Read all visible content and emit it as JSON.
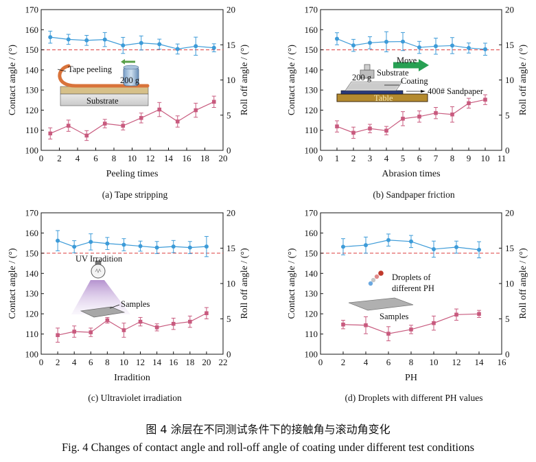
{
  "figure": {
    "caption_cn": "图 4 涂层在不同测试条件下的接触角与滚动角变化",
    "caption_en": "Fig. 4 Changes of contact angle and roll-off angle of coating under different test conditions"
  },
  "colors": {
    "contact": "#3d9bd8",
    "rolloff": "#c85a7e",
    "reference": "#e05050",
    "axis": "#111111"
  },
  "chart_data": [
    {
      "type": "line",
      "caption": "(a) Tape stripping",
      "xlabel": "Peeling times",
      "ylabel": "Contact angle / (°)",
      "y2label": "Roll off angle / (°)",
      "xlim": [
        0,
        20
      ],
      "xticks": [
        0,
        2,
        4,
        6,
        8,
        10,
        12,
        14,
        16,
        18,
        20
      ],
      "ylim": [
        100,
        170
      ],
      "yticks": [
        100,
        110,
        120,
        130,
        140,
        150,
        160,
        170
      ],
      "y2lim": [
        0,
        20
      ],
      "y2ticks": [
        0,
        5,
        10,
        15,
        20
      ],
      "reference_line": 150,
      "series": [
        {
          "axis": "left",
          "x": [
            1,
            3,
            5,
            7,
            9,
            11,
            13,
            15,
            17,
            19
          ],
          "values": [
            156.3,
            155.2,
            154.7,
            155.1,
            152.2,
            153.4,
            152.8,
            150.4,
            151.8,
            151.0
          ],
          "errors": [
            3,
            2.5,
            2.5,
            3.5,
            4,
            3.5,
            2.5,
            2.5,
            4.5,
            2
          ]
        },
        {
          "axis": "right",
          "x": [
            1,
            3,
            5,
            7,
            9,
            11,
            13,
            15,
            17,
            19
          ],
          "values": [
            2.4,
            3.5,
            2.1,
            3.8,
            3.5,
            4.6,
            5.8,
            4.1,
            5.7,
            6.9
          ],
          "errors": [
            0.8,
            0.8,
            0.7,
            0.6,
            0.6,
            0.7,
            1.0,
            0.8,
            1.0,
            0.8
          ]
        }
      ],
      "annotations": [
        "Tape peeling",
        "200 g",
        "Substrate"
      ]
    },
    {
      "type": "line",
      "caption": "(b) Sandpaper friction",
      "xlabel": "Abrasion times",
      "ylabel": "Contact angle / (°)",
      "y2label": "Roll off angle / (°)",
      "xlim": [
        0,
        11
      ],
      "xticks": [
        0,
        1,
        2,
        3,
        4,
        5,
        6,
        7,
        8,
        9,
        10,
        11
      ],
      "ylim": [
        100,
        170
      ],
      "yticks": [
        100,
        110,
        120,
        130,
        140,
        150,
        160,
        170
      ],
      "y2lim": [
        0,
        20
      ],
      "y2ticks": [
        0,
        5,
        10,
        15,
        20
      ],
      "reference_line": 150,
      "series": [
        {
          "axis": "left",
          "x": [
            1,
            2,
            3,
            4,
            5,
            6,
            7,
            8,
            9,
            10
          ],
          "values": [
            155.5,
            152.2,
            153.5,
            154.0,
            154.1,
            151.2,
            151.8,
            152.1,
            150.9,
            150.3
          ],
          "errors": [
            3,
            3,
            3,
            5,
            4.5,
            3,
            4,
            4,
            2.5,
            3
          ]
        },
        {
          "axis": "right",
          "x": [
            1,
            2,
            3,
            4,
            5,
            6,
            7,
            8,
            9,
            10
          ],
          "values": [
            3.4,
            2.5,
            3.1,
            2.8,
            4.5,
            4.8,
            5.3,
            5.1,
            6.7,
            7.2
          ],
          "errors": [
            0.8,
            0.8,
            0.6,
            0.6,
            1.0,
            0.8,
            0.8,
            1.1,
            0.7,
            0.7
          ]
        }
      ],
      "annotations": [
        "Move",
        "200 g",
        "Substrate",
        "Coating",
        "400# Sandpaper",
        "Table"
      ]
    },
    {
      "type": "line",
      "caption": "(c) Ultraviolet irradiation",
      "xlabel": "Irradition",
      "ylabel": "Contact angle / (°)",
      "y2label": "Roll off angle / (°)",
      "xlim": [
        0,
        22
      ],
      "xticks": [
        0,
        2,
        4,
        6,
        8,
        10,
        12,
        14,
        16,
        18,
        20,
        22
      ],
      "ylim": [
        100,
        170
      ],
      "yticks": [
        100,
        110,
        120,
        130,
        140,
        150,
        160,
        170
      ],
      "y2lim": [
        0,
        20
      ],
      "y2ticks": [
        0,
        5,
        10,
        15,
        20
      ],
      "reference_line": 150,
      "series": [
        {
          "axis": "left",
          "x": [
            2,
            4,
            6,
            8,
            10,
            12,
            14,
            16,
            18,
            20
          ],
          "values": [
            156.2,
            153.2,
            155.6,
            154.8,
            154.2,
            153.5,
            152.8,
            153.3,
            152.8,
            153.3
          ],
          "errors": [
            5,
            3,
            4,
            3,
            3,
            2.5,
            3,
            3,
            3,
            5
          ]
        },
        {
          "axis": "right",
          "x": [
            2,
            4,
            6,
            8,
            10,
            12,
            14,
            16,
            18,
            20
          ],
          "values": [
            2.7,
            3.2,
            3.1,
            4.8,
            3.4,
            4.6,
            3.8,
            4.3,
            4.6,
            5.8
          ],
          "errors": [
            1.0,
            0.8,
            0.6,
            0.4,
            1.0,
            0.6,
            0.5,
            0.8,
            0.8,
            0.8
          ]
        }
      ],
      "annotations": [
        "UV Irradition",
        "Samples"
      ]
    },
    {
      "type": "line",
      "caption": "(d) Droplets with different PH values",
      "xlabel": "PH",
      "ylabel": "Contact angle / (°)",
      "y2label": "Roll off angle / (°)",
      "xlim": [
        0,
        16
      ],
      "xticks": [
        0,
        2,
        4,
        6,
        8,
        10,
        12,
        14,
        16
      ],
      "ylim": [
        100,
        170
      ],
      "yticks": [
        100,
        110,
        120,
        130,
        140,
        150,
        160,
        170
      ],
      "y2lim": [
        0,
        20
      ],
      "y2ticks": [
        0,
        5,
        10,
        15,
        20
      ],
      "reference_line": 150,
      "series": [
        {
          "axis": "left",
          "x": [
            2,
            4,
            6,
            8,
            10,
            12,
            14
          ],
          "values": [
            153.2,
            154.0,
            156.5,
            155.8,
            152.0,
            153.0,
            151.7
          ],
          "errors": [
            4,
            4,
            3,
            3,
            4,
            3,
            4
          ]
        },
        {
          "axis": "right",
          "x": [
            2,
            4,
            6,
            8,
            10,
            12,
            14
          ],
          "values": [
            4.2,
            4.1,
            2.9,
            3.5,
            4.4,
            5.6,
            5.7
          ],
          "errors": [
            0.6,
            1.2,
            1.0,
            0.6,
            1.0,
            0.8,
            0.5
          ]
        }
      ],
      "annotations": [
        "Droplets of",
        "different PH",
        "Samples"
      ]
    }
  ]
}
